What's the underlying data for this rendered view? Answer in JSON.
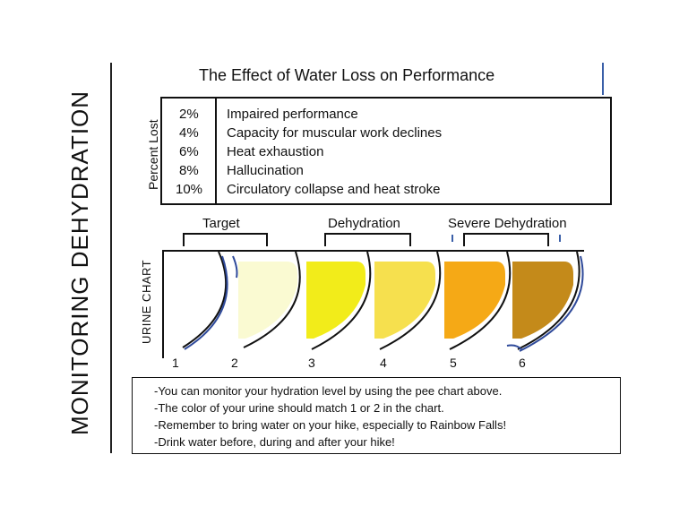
{
  "side_title": "MONITORING DEHYDRATION",
  "main_title": "The Effect of Water Loss on Performance",
  "percent_axis_label": "Percent Lost",
  "water_loss_rows": [
    {
      "percent": "2%",
      "effect": "Impaired performance"
    },
    {
      "percent": "4%",
      "effect": "Capacity for muscular work declines"
    },
    {
      "percent": "6%",
      "effect": "Heat exhaustion"
    },
    {
      "percent": "8%",
      "effect": "Hallucination"
    },
    {
      "percent": "10%",
      "effect": "Circulatory collapse and heat stroke"
    }
  ],
  "brackets": {
    "target": "Target",
    "dehydration": "Dehydration",
    "severe": "Severe Dehydration"
  },
  "urine_chart_label": "URINE CHART",
  "swatches": [
    {
      "number": "1",
      "color": "#ffffff"
    },
    {
      "number": "2",
      "color": "#fafad2"
    },
    {
      "number": "3",
      "color": "#f2ec1a"
    },
    {
      "number": "4",
      "color": "#f6e04e"
    },
    {
      "number": "5",
      "color": "#f5a916"
    },
    {
      "number": "6",
      "color": "#c48a1a"
    }
  ],
  "notes": [
    "-You can monitor your hydration level by using the pee chart above.",
    "-The color of your urine should match 1 or 2 in the chart.",
    "-Remember to bring water on your hike, especially to Rainbow Falls!",
    "-Drink water before, during and after your hike!"
  ],
  "colors": {
    "outline": "#111111",
    "cup_edge": "#2f4a9a"
  }
}
